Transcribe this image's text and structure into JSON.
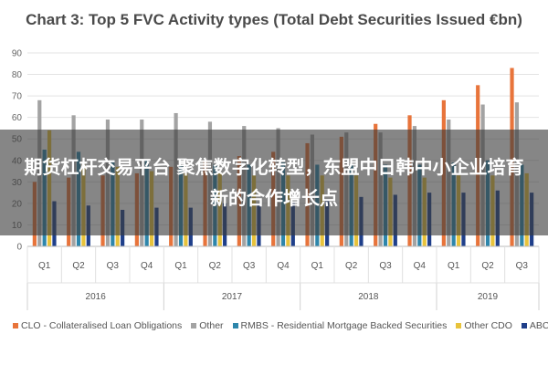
{
  "chart_data": {
    "type": "bar",
    "title": "Chart 3: Top 5 FVC Activity types (Total Debt Securities Issued €bn)",
    "xlabel": "",
    "ylabel": "",
    "ylim": [
      0,
      90
    ],
    "yticks": [
      "0",
      "10",
      "20",
      "30",
      "40",
      "50",
      "60",
      "70",
      "80",
      "90"
    ],
    "categories": [
      "Q1",
      "Q2",
      "Q3",
      "Q4",
      "Q1",
      "Q2",
      "Q3",
      "Q4",
      "Q1",
      "Q2",
      "Q3",
      "Q4",
      "Q1",
      "Q2",
      "Q3"
    ],
    "years": [
      {
        "label": "2016",
        "span": 4
      },
      {
        "label": "2017",
        "span": 4
      },
      {
        "label": "2018",
        "span": 4
      },
      {
        "label": "2019",
        "span": 3
      }
    ],
    "grid": true,
    "legend_position": "bottom",
    "series": [
      {
        "name": "CLO - Collateralised Loan Obligations",
        "color": "#e8743b",
        "values": [
          30,
          32,
          33,
          34,
          37,
          40,
          42,
          44,
          48,
          51,
          57,
          61,
          68,
          75,
          83
        ]
      },
      {
        "name": "Other",
        "color": "#a3a3a3",
        "values": [
          68,
          61,
          59,
          59,
          62,
          58,
          56,
          55,
          52,
          53,
          53,
          56,
          59,
          66,
          67
        ]
      },
      {
        "name": "RMBS - Residential Mortgage Backed Securities",
        "color": "#2e86ab",
        "values": [
          45,
          44,
          40,
          40,
          38,
          38,
          38,
          39,
          38,
          38,
          38,
          38,
          39,
          40,
          38
        ]
      },
      {
        "name": "Other CDO",
        "color": "#e8c33b",
        "values": [
          54,
          38,
          37,
          35,
          34,
          34,
          33,
          33,
          33,
          33,
          32,
          32,
          33,
          33,
          34
        ]
      },
      {
        "name": "ABCP",
        "color": "#1f3f8a",
        "values": [
          21,
          19,
          17,
          18,
          18,
          20,
          20,
          21,
          22,
          23,
          24,
          25,
          25,
          26,
          25
        ]
      }
    ]
  },
  "overlay": {
    "caption": "期货杠杆交易平台 聚焦数字化转型，东盟中日韩中小企业培育新的合作增长点"
  }
}
